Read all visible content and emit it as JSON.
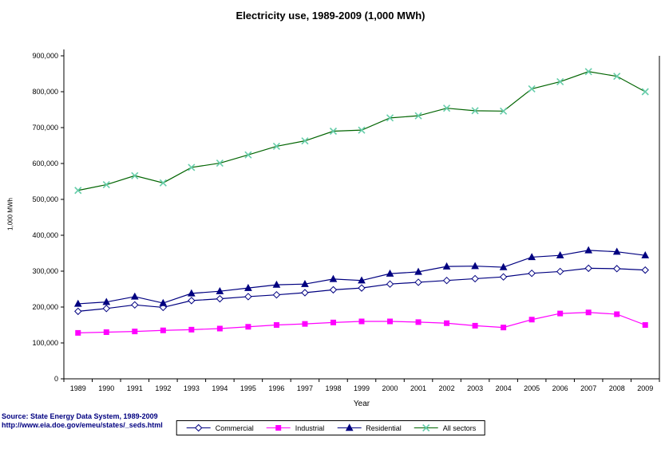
{
  "source": {
    "line1": "Source: State Energy Data System, 1989-2009",
    "line2": "http://www.eia.doe.gov/emeu/states/_seds.html"
  },
  "chart_data": {
    "type": "line",
    "title": "Electricity use, 1989-2009 (1,000 MWh)",
    "xlabel": "Year",
    "ylabel": "1,000 MWh",
    "ylim": [
      0,
      900000
    ],
    "ytick_step": 100000,
    "grid": false,
    "legend_position": "bottom",
    "categories": [
      "1989",
      "1990",
      "1991",
      "1992",
      "1993",
      "1994",
      "1995",
      "1996",
      "1997",
      "1998",
      "1999",
      "2000",
      "2001",
      "2002",
      "2003",
      "2004",
      "2005",
      "2006",
      "2007",
      "2008",
      "2009"
    ],
    "series": [
      {
        "name": "Commercial",
        "marker": "diamond",
        "line_color": "#000080",
        "marker_color": "#000080",
        "marker_fill": "#ffffff",
        "values": [
          188000,
          196000,
          206000,
          199000,
          218000,
          223000,
          229000,
          234000,
          240000,
          248000,
          253000,
          264000,
          269000,
          274000,
          279000,
          284000,
          294000,
          299000,
          308000,
          307000,
          303000
        ]
      },
      {
        "name": "Industrial",
        "marker": "square",
        "line_color": "#ff00ff",
        "marker_color": "#ff00ff",
        "marker_fill": "#ff00ff",
        "values": [
          128000,
          130000,
          132000,
          135000,
          137000,
          140000,
          145000,
          150000,
          153000,
          157000,
          160000,
          160000,
          158000,
          155000,
          148000,
          143000,
          165000,
          182000,
          185000,
          180000,
          150000
        ]
      },
      {
        "name": "Residential",
        "marker": "triangle",
        "line_color": "#000080",
        "marker_color": "#000080",
        "marker_fill": "#000080",
        "values": [
          209000,
          214000,
          229000,
          211000,
          238000,
          244000,
          253000,
          262000,
          264000,
          278000,
          274000,
          293000,
          298000,
          313000,
          314000,
          311000,
          339000,
          344000,
          358000,
          354000,
          344000
        ]
      },
      {
        "name": "All sectors",
        "marker": "x",
        "line_color": "#006400",
        "marker_color": "#66cdaa",
        "marker_fill": "none",
        "values": [
          525000,
          541000,
          566000,
          546000,
          589000,
          601000,
          624000,
          648000,
          663000,
          690000,
          693000,
          727000,
          733000,
          754000,
          747000,
          746000,
          808000,
          828000,
          856000,
          843000,
          800000
        ]
      }
    ]
  }
}
